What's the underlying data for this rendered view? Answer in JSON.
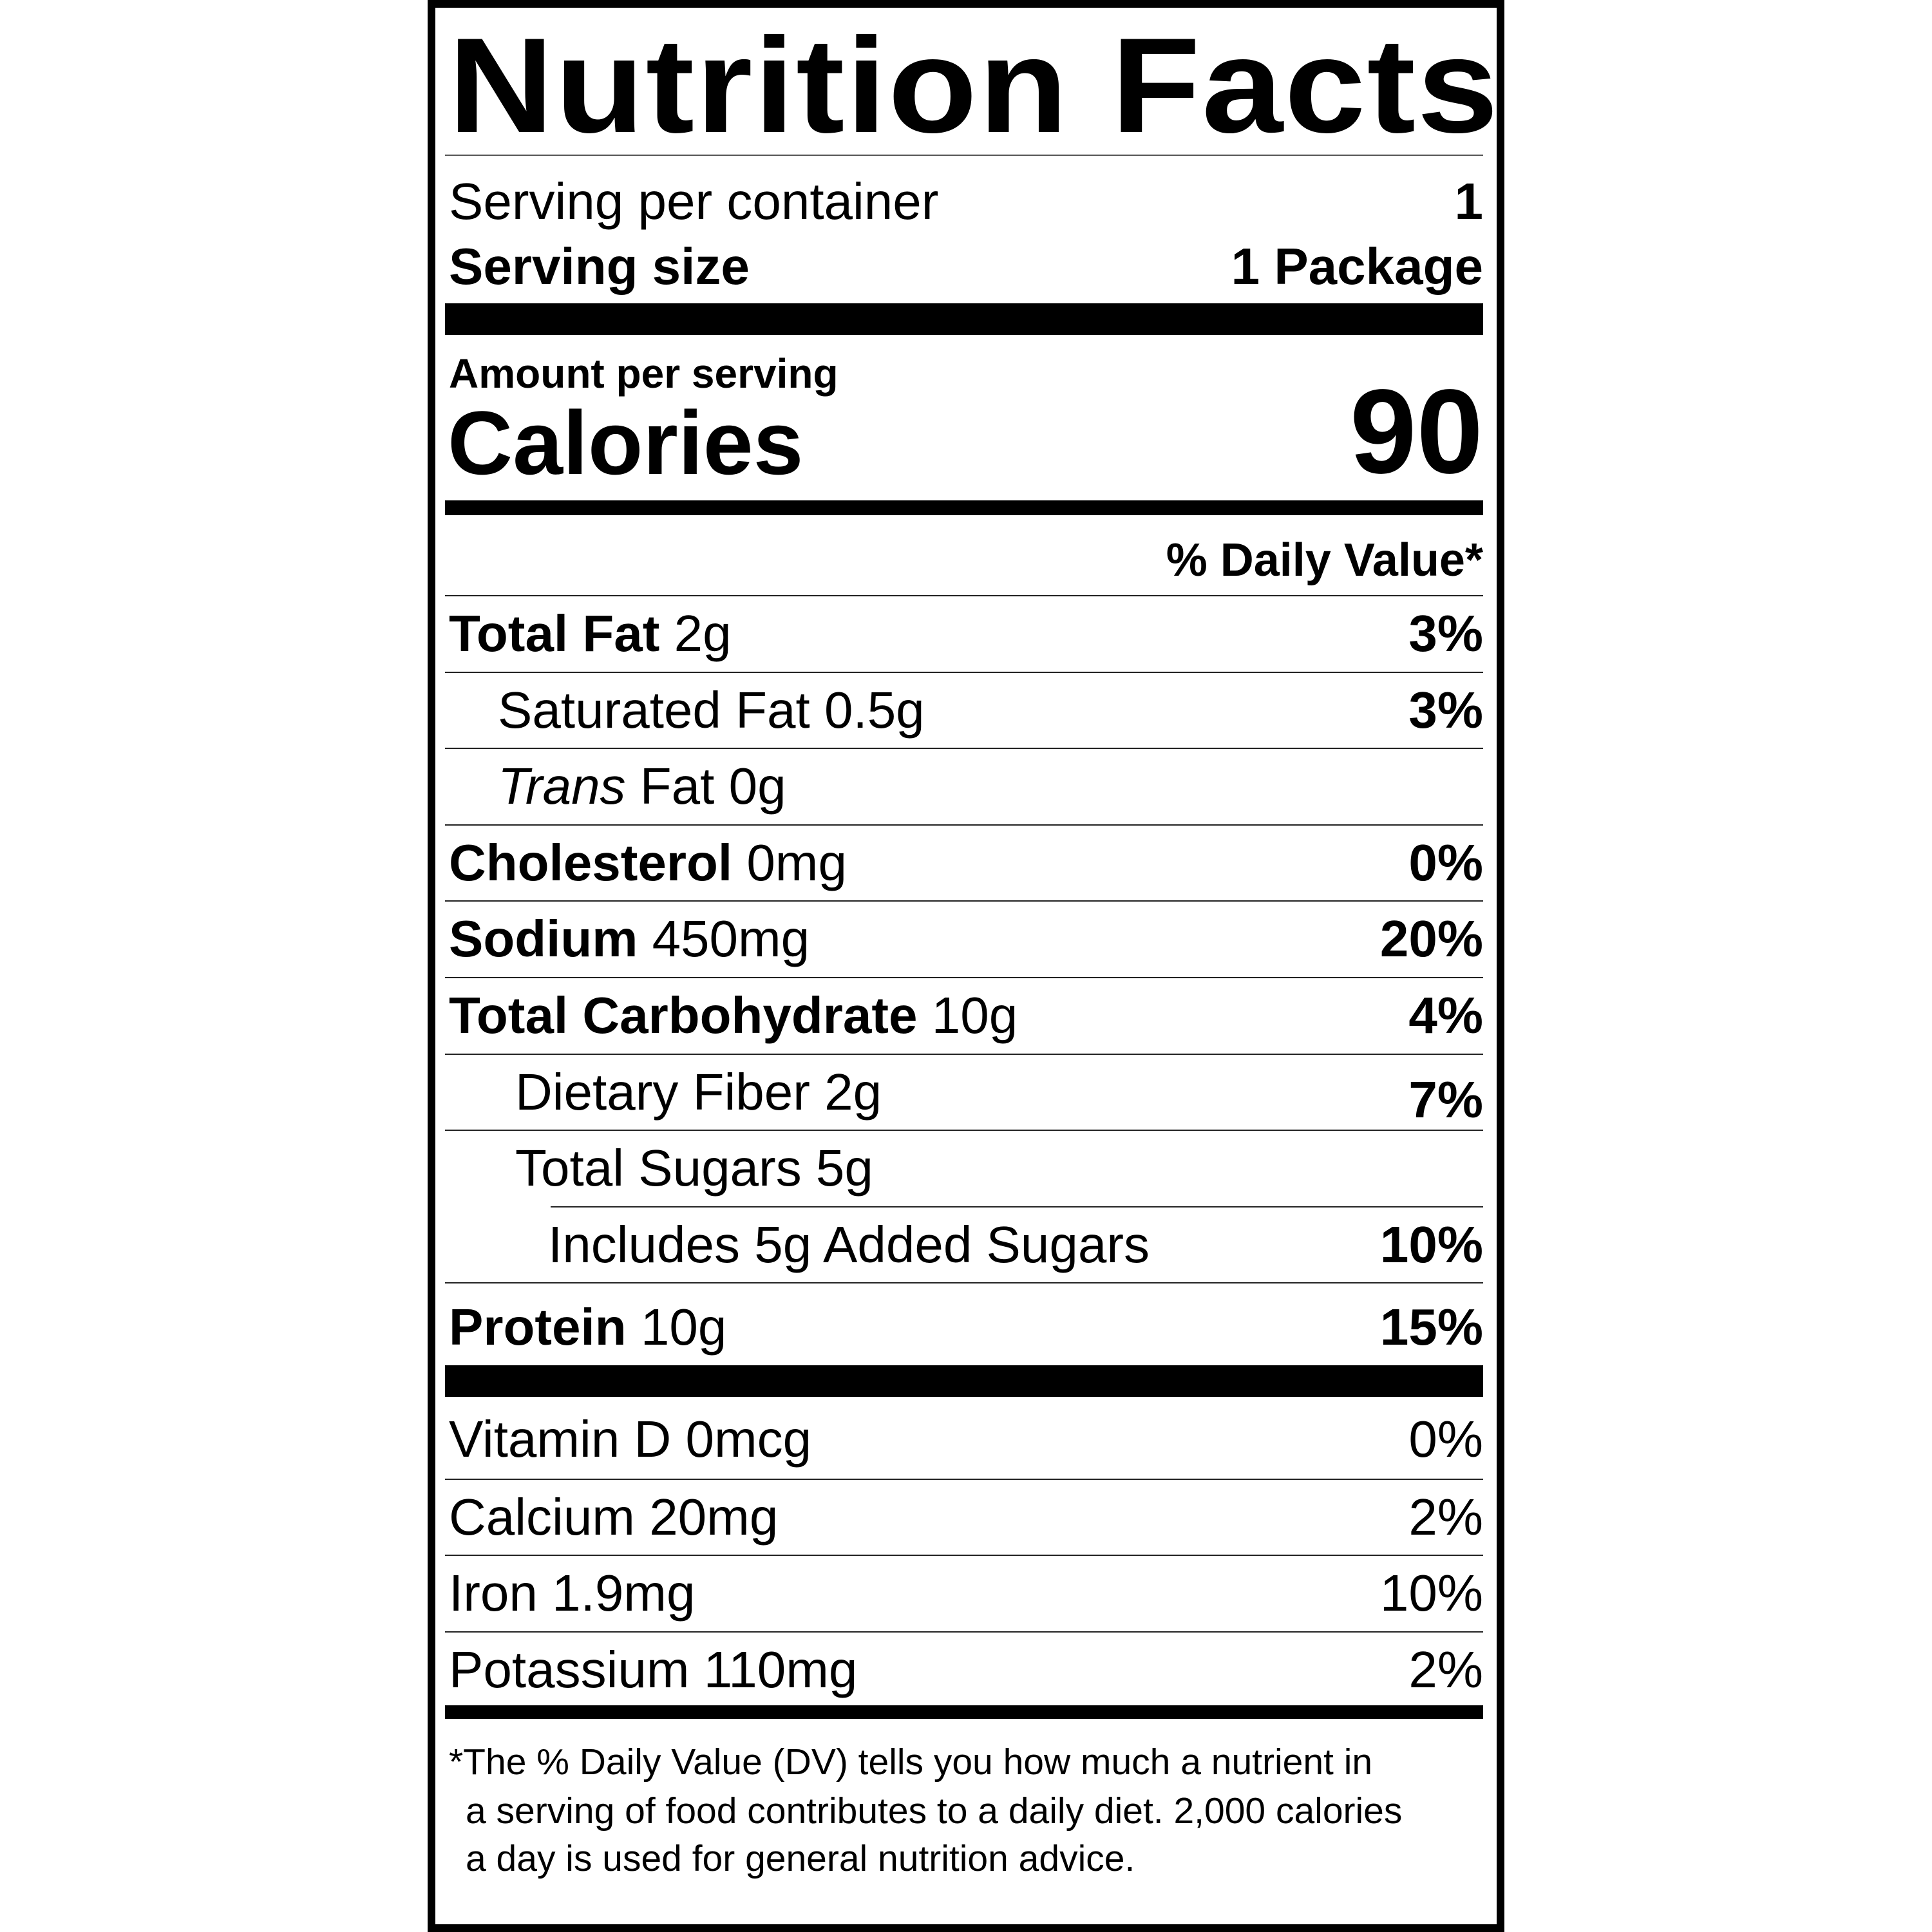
{
  "title": "Nutrition Facts",
  "servings_per_container": {
    "label": "Serving per container",
    "value": "1"
  },
  "serving_size": {
    "label": "Serving size",
    "value": "1 Package"
  },
  "amount_per_serving": "Amount per serving",
  "calories": {
    "label": "Calories",
    "value": "90"
  },
  "daily_value_header": "% Daily Value*",
  "nutrients": [
    {
      "name": "Total Fat",
      "amount": "2g",
      "dv": "3%"
    },
    {
      "name": "Saturated Fat",
      "amount": "0.5g",
      "dv": "3%"
    },
    {
      "name_italic": "Trans",
      "name": "Fat",
      "amount": "0g",
      "dv": ""
    },
    {
      "name": "Cholesterol",
      "amount": "0mg",
      "dv": "0%"
    },
    {
      "name": "Sodium",
      "amount": "450mg",
      "dv": "20%"
    },
    {
      "name": "Total Carbohydrate",
      "amount": "10g",
      "dv": "4%"
    },
    {
      "name": "Dietary Fiber",
      "amount": "2g",
      "dv": "7%"
    },
    {
      "name": "Total Sugars",
      "amount": "5g",
      "dv": ""
    },
    {
      "name": "Includes 5g Added Sugars",
      "amount": "",
      "dv": "10%"
    },
    {
      "name": "Protein",
      "amount": "10g",
      "dv": "15%"
    }
  ],
  "vitamins": [
    {
      "name": "Vitamin D",
      "amount": "0mcg",
      "dv": "0%"
    },
    {
      "name": "Calcium",
      "amount": "20mg",
      "dv": "2%"
    },
    {
      "name": "Iron",
      "amount": "1.9mg",
      "dv": "10%"
    },
    {
      "name": "Potassium",
      "amount": "110mg",
      "dv": "2%"
    }
  ],
  "footnote": [
    "*The % Daily Value (DV) tells you how much a nutrient in",
    "a serving of food contributes to a daily diet. 2,000 calories",
    "a day is used for general nutrition advice."
  ]
}
